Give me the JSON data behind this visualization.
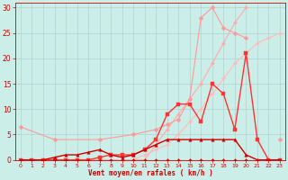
{
  "xlabel": "Vent moyen/en rafales ( km/h )",
  "bg_color": "#cceee8",
  "grid_color": "#aacccc",
  "xlim": [
    -0.5,
    23.5
  ],
  "ylim": [
    0,
    31
  ],
  "yticks": [
    0,
    5,
    10,
    15,
    20,
    25,
    30
  ],
  "xticks": [
    0,
    1,
    2,
    3,
    4,
    5,
    6,
    7,
    8,
    9,
    10,
    11,
    12,
    13,
    14,
    15,
    16,
    17,
    18,
    19,
    20,
    21,
    22,
    23
  ],
  "lines": [
    {
      "x": [
        0,
        1,
        2,
        3,
        4,
        5,
        6,
        7,
        8,
        9,
        10,
        11,
        12,
        13,
        14,
        15,
        16,
        17,
        18,
        19,
        20,
        21,
        22,
        23
      ],
      "y": [
        0,
        0,
        0,
        0,
        0,
        0,
        0,
        0,
        0,
        0,
        0,
        0,
        3,
        6,
        9,
        12,
        15,
        19,
        23,
        27,
        30,
        null,
        null,
        null
      ],
      "color": "#ffaaaa",
      "marker": "D",
      "lw": 0.8,
      "ms": 2.0
    },
    {
      "x": [
        0,
        1,
        2,
        3,
        4,
        5,
        6,
        7,
        8,
        9,
        10,
        11,
        12,
        13,
        14,
        15,
        16,
        17,
        18,
        19,
        20,
        21,
        22,
        23
      ],
      "y": [
        0,
        0,
        0,
        0,
        0,
        0,
        0,
        0,
        0,
        0,
        0,
        1,
        2,
        3,
        5,
        7.5,
        10,
        13,
        16,
        19,
        21,
        23,
        24,
        25
      ],
      "color": "#ffbbbb",
      "marker": "D",
      "lw": 0.8,
      "ms": 2.0
    },
    {
      "x": [
        0,
        3,
        7,
        10,
        12,
        13,
        14,
        15,
        16,
        17,
        18,
        19,
        20,
        21,
        22,
        23
      ],
      "y": [
        6.5,
        4,
        4,
        5,
        6,
        7,
        8,
        12,
        28,
        30,
        26,
        25,
        24,
        null,
        null,
        4
      ],
      "color": "#ff9999",
      "marker": "D",
      "lw": 0.8,
      "ms": 2.5
    },
    {
      "x": [
        0,
        1,
        2,
        3,
        4,
        5,
        6,
        7,
        8,
        9,
        10,
        11,
        12,
        13,
        14,
        15,
        16,
        17,
        18,
        19,
        20,
        21,
        22,
        23
      ],
      "y": [
        0,
        0,
        0,
        0,
        0,
        0,
        0,
        0.5,
        1,
        1,
        1,
        2,
        4,
        9,
        11,
        11,
        7.5,
        15,
        13,
        6,
        21,
        4,
        0,
        0
      ],
      "color": "#ff3333",
      "marker": "s",
      "lw": 1.0,
      "ms": 2.5
    },
    {
      "x": [
        0,
        1,
        2,
        3,
        4,
        5,
        6,
        7,
        8,
        9,
        10,
        11,
        12,
        13,
        14,
        15,
        16,
        17,
        18,
        19,
        20,
        21,
        22,
        23
      ],
      "y": [
        0,
        0,
        0,
        0.5,
        1,
        1,
        1.5,
        2,
        1,
        0.5,
        1,
        2,
        3,
        4,
        4,
        4,
        4,
        4,
        4,
        4,
        1,
        0,
        0,
        0
      ],
      "color": "#cc0000",
      "marker": "^",
      "lw": 1.0,
      "ms": 2.5
    },
    {
      "x": [
        0,
        1,
        2,
        3,
        4,
        5,
        6,
        7,
        8,
        9,
        10,
        11,
        12,
        13,
        14,
        15,
        16,
        17,
        18,
        19,
        20,
        21,
        22,
        23
      ],
      "y": [
        0,
        0,
        0,
        0,
        0,
        0,
        0,
        0,
        0,
        0,
        0,
        0,
        0,
        0,
        0,
        0,
        0,
        0,
        0,
        0,
        0,
        0,
        0,
        0
      ],
      "color": "#ff0000",
      "marker": "D",
      "lw": 0.8,
      "ms": 2.0
    }
  ]
}
